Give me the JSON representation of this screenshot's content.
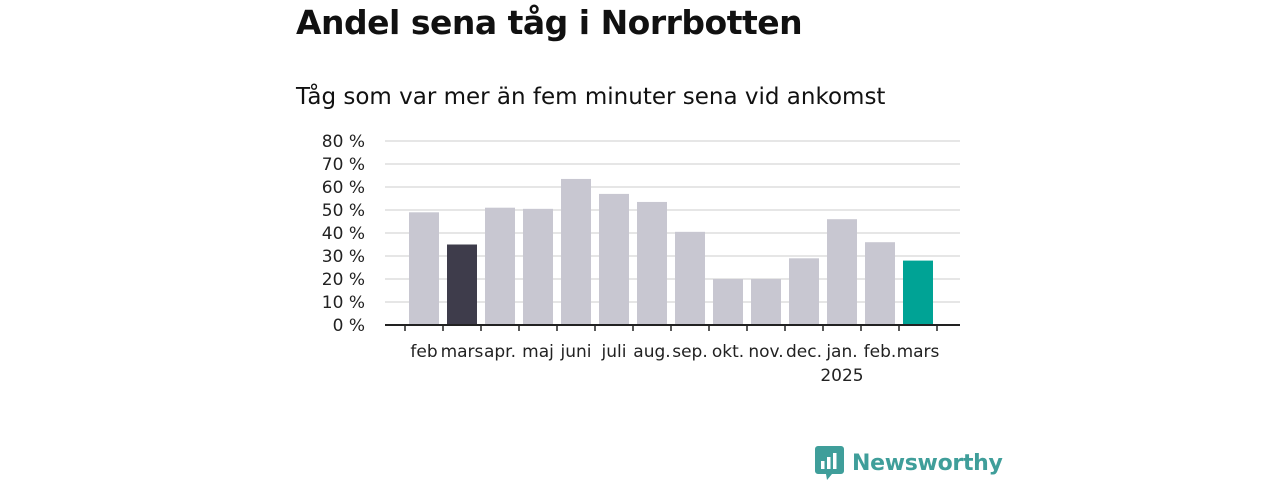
{
  "header": {
    "title": "Andel sena tåg i Norrbotten",
    "subtitle": "Tåg som var mer än fem minuter sena vid ankomst"
  },
  "brand": {
    "name": "Newsworthy",
    "color": "#3f9e9a"
  },
  "colors": {
    "default_bar": "#c8c7d1",
    "highlight_previous": "#3e3c4b",
    "highlight_current": "#00a395",
    "grid": "#dddddd",
    "axis": "#222222"
  },
  "chart_data": {
    "type": "bar",
    "categories": [
      "feb",
      "mars",
      "apr.",
      "maj",
      "juni",
      "juli",
      "aug.",
      "sep.",
      "okt.",
      "nov.",
      "dec.",
      "jan.",
      "feb.",
      "mars"
    ],
    "category_sublabels": [
      "",
      "",
      "",
      "",
      "",
      "",
      "",
      "",
      "",
      "",
      "",
      "2025",
      "",
      ""
    ],
    "values": [
      49,
      35,
      51,
      50.5,
      63.5,
      57,
      53.5,
      40.5,
      20,
      20,
      29,
      46,
      36,
      28
    ],
    "highlight": [
      "default",
      "previous",
      "default",
      "default",
      "default",
      "default",
      "default",
      "default",
      "default",
      "default",
      "default",
      "default",
      "default",
      "current"
    ],
    "ylim": [
      0,
      80
    ],
    "yticks": [
      0,
      10,
      20,
      30,
      40,
      50,
      60,
      70,
      80
    ],
    "ytick_labels": [
      "0 %",
      "10 %",
      "20 %",
      "30 %",
      "40 %",
      "50 %",
      "60 %",
      "70 %",
      "80 %"
    ],
    "grid": true,
    "legend": "none",
    "xlabel": "",
    "ylabel": ""
  }
}
